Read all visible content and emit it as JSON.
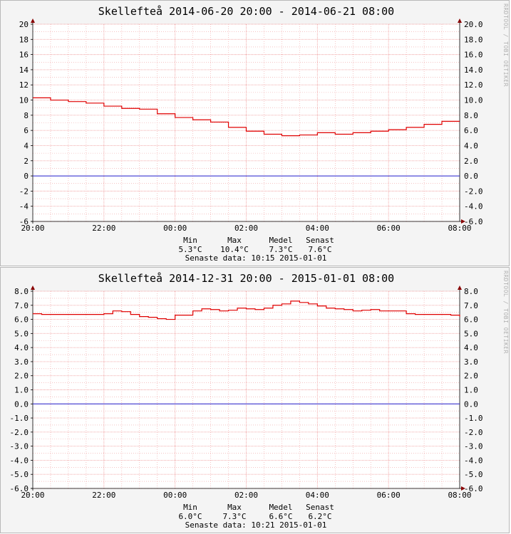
{
  "chart_data": [
    {
      "type": "line",
      "title": "Skellefteå 2014-06-20 20:00 - 2014-06-21 08:00",
      "watermark": "RRDTOOL / TOBI OETIKER",
      "x_tick_labels": [
        "20:00",
        "22:00",
        "00:00",
        "02:00",
        "04:00",
        "06:00",
        "08:00"
      ],
      "y_ticks_left": [
        "20",
        "18",
        "16",
        "14",
        "12",
        "10",
        "8",
        "6",
        "4",
        "2",
        "0",
        "-2",
        "-4",
        "-6"
      ],
      "y_ticks_right": [
        "20.0",
        "18.0",
        "16.0",
        "14.0",
        "12.0",
        "10.0",
        "8.0",
        "6.0",
        "4.0",
        "2.0",
        "0.0",
        "-2.0",
        "-4.0",
        "-6.0"
      ],
      "ylim": [
        -6,
        20
      ],
      "xlim_hours": [
        0,
        12
      ],
      "grid": true,
      "colors": {
        "series": "#e00000",
        "zero_line": "#2020d0",
        "grid": "#f0a0a0",
        "arrow": "#880000"
      },
      "series": [
        {
          "x_hours": [
            0,
            0.5,
            1,
            1.5,
            2,
            2.5,
            3,
            3.5,
            4,
            4.5,
            5,
            5.5,
            6,
            6.5,
            7,
            7.5,
            8,
            8.5,
            9,
            9.5,
            10,
            10.5,
            11,
            11.5,
            12
          ],
          "values": [
            10.3,
            10.0,
            9.8,
            9.6,
            9.2,
            8.9,
            8.8,
            8.2,
            7.7,
            7.4,
            7.1,
            6.4,
            5.9,
            5.5,
            5.3,
            5.4,
            5.7,
            5.5,
            5.7,
            5.9,
            6.1,
            6.4,
            6.8,
            7.2,
            7.2
          ]
        }
      ],
      "stats": {
        "headers": [
          "Min",
          "Max",
          "Medel",
          "Senast"
        ],
        "values": [
          "5.3°C",
          "10.4°C",
          "7.3°C",
          "7.6°C"
        ],
        "last_data": "Senaste data: 10:15 2015-01-01"
      }
    },
    {
      "type": "line",
      "title": "Skellefteå 2014-12-31 20:00 - 2015-01-01 08:00",
      "watermark": "RRDTOOL / TOBI OETIKER",
      "x_tick_labels": [
        "20:00",
        "22:00",
        "00:00",
        "02:00",
        "04:00",
        "06:00",
        "08:00"
      ],
      "y_ticks_left": [
        "8.0",
        "7.0",
        "6.0",
        "5.0",
        "4.0",
        "3.0",
        "2.0",
        "1.0",
        "0.0",
        "-1.0",
        "-2.0",
        "-3.0",
        "-4.0",
        "-5.0",
        "-6.0"
      ],
      "y_ticks_right": [
        "8.0",
        "7.0",
        "6.0",
        "5.0",
        "4.0",
        "3.0",
        "2.0",
        "1.0",
        "0.0",
        "-1.0",
        "-2.0",
        "-3.0",
        "-4.0",
        "-5.0",
        "-6.0"
      ],
      "ylim": [
        -6,
        8
      ],
      "xlim_hours": [
        0,
        12
      ],
      "grid": true,
      "colors": {
        "series": "#e00000",
        "zero_line": "#2020d0",
        "grid": "#f0a0a0",
        "arrow": "#880000"
      },
      "series": [
        {
          "x_hours": [
            0,
            0.25,
            0.5,
            0.75,
            1,
            1.25,
            1.5,
            1.75,
            2,
            2.25,
            2.5,
            2.75,
            3,
            3.25,
            3.5,
            3.75,
            4,
            4.25,
            4.5,
            4.75,
            5,
            5.25,
            5.5,
            5.75,
            6,
            6.25,
            6.5,
            6.75,
            7,
            7.25,
            7.5,
            7.75,
            8,
            8.25,
            8.5,
            8.75,
            9,
            9.25,
            9.5,
            9.75,
            10,
            10.25,
            10.5,
            10.75,
            11,
            11.25,
            11.5,
            11.75,
            12
          ],
          "values": [
            6.4,
            6.35,
            6.35,
            6.35,
            6.35,
            6.35,
            6.35,
            6.35,
            6.4,
            6.6,
            6.55,
            6.35,
            6.2,
            6.15,
            6.05,
            6.0,
            6.3,
            6.3,
            6.6,
            6.75,
            6.7,
            6.6,
            6.65,
            6.8,
            6.75,
            6.7,
            6.8,
            7.0,
            7.1,
            7.3,
            7.2,
            7.1,
            6.95,
            6.8,
            6.75,
            6.7,
            6.6,
            6.65,
            6.7,
            6.6,
            6.6,
            6.6,
            6.4,
            6.35,
            6.35,
            6.35,
            6.35,
            6.3,
            6.2
          ]
        }
      ],
      "stats": {
        "headers": [
          "Min",
          "Max",
          "Medel",
          "Senast"
        ],
        "values": [
          "6.0°C",
          "7.3°C",
          "6.6°C",
          "6.2°C"
        ],
        "last_data": "Senaste data: 10:21 2015-01-01"
      }
    }
  ]
}
